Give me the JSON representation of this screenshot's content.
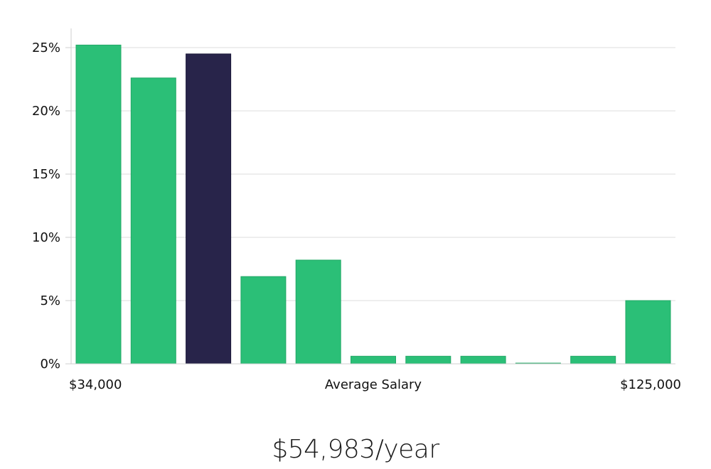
{
  "colors": {
    "bar": "#2bbf77",
    "highlight": "#28244a",
    "grid": "#dcdcdc",
    "axis": "#cfcfcf"
  },
  "x_axis": {
    "min_label": "$34,000",
    "center_label": "Average Salary",
    "max_label": "$125,000"
  },
  "salary": {
    "display": "$54,983/year"
  },
  "chart_data": {
    "type": "bar",
    "ylim": [
      0,
      26.5
    ],
    "y_ticks": [
      0,
      5,
      10,
      15,
      20,
      25
    ],
    "y_tick_labels": [
      "0%",
      "5%",
      "10%",
      "15%",
      "20%",
      "25%"
    ],
    "values": [
      25.2,
      22.6,
      24.5,
      6.9,
      8.2,
      0.6,
      0.6,
      0.6,
      0.05,
      0.6,
      5.0
    ],
    "highlight_index": 2,
    "grid": true,
    "xlabel": "Average Salary"
  }
}
